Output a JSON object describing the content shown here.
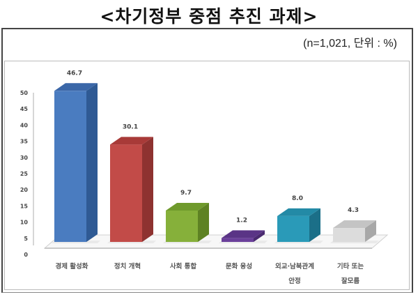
{
  "header": {
    "title": "<차기정부 중점 추진 과제>",
    "subtitle": "(n=1,021,  단위  :  %)"
  },
  "chart_data": {
    "type": "bar",
    "title": "<차기정부 중점 추진 과제>",
    "subtitle": "(n=1,021, 단위 : %)",
    "style": "3d-column",
    "categories": [
      "경제 활성화",
      "정치 개혁",
      "사회 통합",
      "문화 융성",
      "외교·남북관계 안정",
      "기타 또는 잘모름"
    ],
    "category_lines": [
      [
        "경제 활성화"
      ],
      [
        "정치 개혁"
      ],
      [
        "사회 통합"
      ],
      [
        "문화 융성"
      ],
      [
        "외교·남북관계",
        "안정"
      ],
      [
        "기타 또는",
        "잘모름"
      ]
    ],
    "values": [
      46.7,
      30.1,
      9.7,
      1.2,
      8.0,
      4.3
    ],
    "value_labels": [
      "46.7",
      "30.1",
      "9.7",
      "1.2",
      "8.0",
      "4.3"
    ],
    "colors": [
      "#4a7cc0",
      "#c24b48",
      "#86b03a",
      "#6a3f9a",
      "#2a9ab8",
      "#dcdcdc"
    ],
    "side_colors": [
      "#2f5a94",
      "#8e3230",
      "#5e8223",
      "#4a2a70",
      "#1b6f88",
      "#a8a8a8"
    ],
    "top_colors": [
      "#3b67a8",
      "#a83a38",
      "#6f9a2c",
      "#5a3486",
      "#238aa6",
      "#c4c4c4"
    ],
    "xlabel": "",
    "ylabel": "",
    "ylim": [
      0,
      50
    ],
    "yticks": [
      0,
      5,
      10,
      15,
      20,
      25,
      30,
      35,
      40,
      45,
      50
    ],
    "grid": false,
    "legend": "none"
  }
}
